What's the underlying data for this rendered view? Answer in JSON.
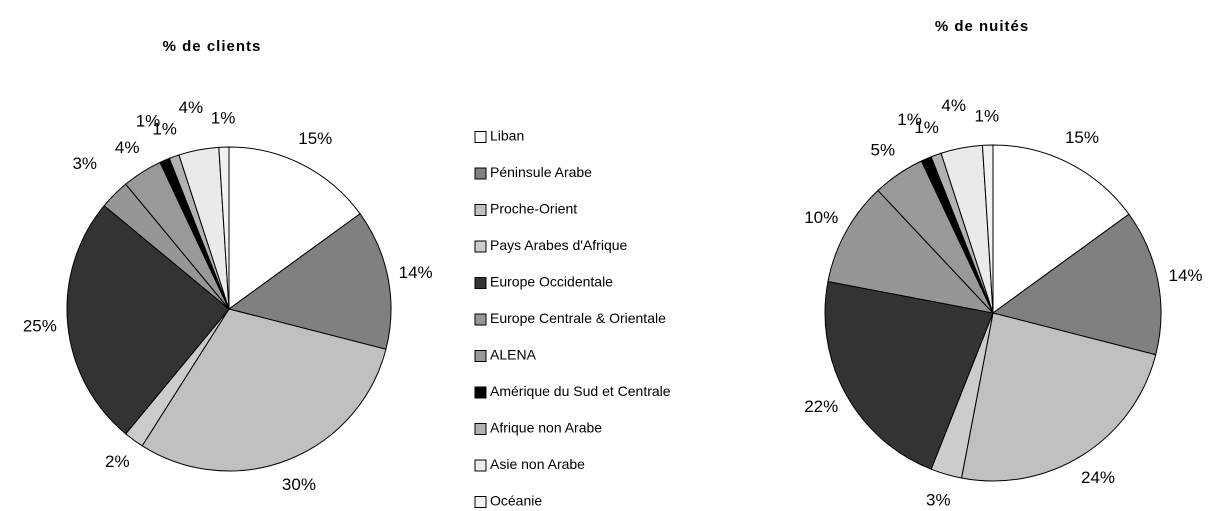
{
  "chart_data": [
    {
      "type": "pie",
      "title": "% de clients",
      "categories": [
        "Liban",
        "Péninsule Arabe",
        "Proche-Orient",
        "Pays Arabes d'Afrique",
        "Europe Occidentale",
        "Europe Centrale & Orientale",
        "ALENA",
        "Amérique du Sud et Centrale",
        "Afrique non Arabe",
        "Asie non Arabe",
        "Océanie"
      ],
      "colors": [
        "#ffffff",
        "#808080",
        "#c0c0c0",
        "#cccccc",
        "#333333",
        "#969696",
        "#999999",
        "#000000",
        "#b2b2b2",
        "#eaeaea",
        "#f2f2f2"
      ],
      "values": [
        15,
        14,
        30,
        2,
        25,
        3,
        4,
        1,
        1,
        4,
        1
      ],
      "value_labels": [
        "15%",
        "14%",
        "30%",
        "2%",
        "25%",
        "3%",
        "4%",
        "1%",
        "1%",
        "4%",
        "1%"
      ]
    },
    {
      "type": "pie",
      "title": "% de nuités",
      "values": [
        15,
        14,
        24,
        3,
        22,
        10,
        5,
        1,
        1,
        4,
        1
      ],
      "value_labels": [
        "15%",
        "14%",
        "24%",
        "3%",
        "22%",
        "10%",
        "5%",
        "1%",
        "1%",
        "4%",
        "1%"
      ]
    }
  ]
}
